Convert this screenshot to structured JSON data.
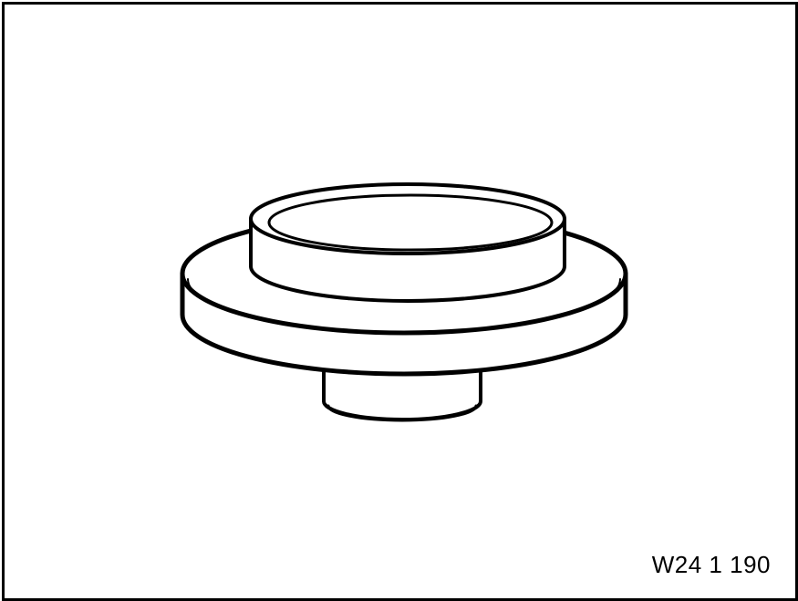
{
  "figure": {
    "code": "W24 1 190",
    "subject": "stepped-disc-tool-icon",
    "line_color": "#000000",
    "fill_color": "#ffffff"
  }
}
